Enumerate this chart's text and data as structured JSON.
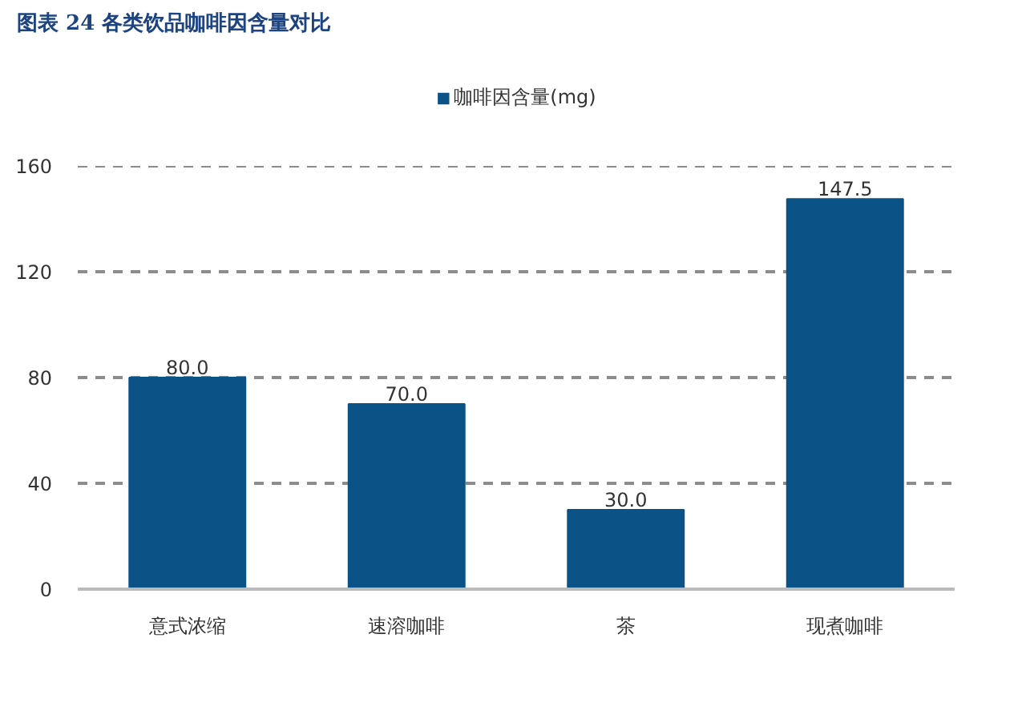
{
  "chart_data": {
    "type": "bar",
    "title": "图表 24 各类饮品咖啡因含量对比",
    "categories": [
      "意式浓缩",
      "速溶咖啡",
      "茶",
      "现煮咖啡"
    ],
    "series": [
      {
        "name": "咖啡因含量(mg)",
        "color": "#0b5286",
        "values": [
          80,
          70,
          30,
          147.5
        ],
        "value_labels": [
          "80.0",
          "70.0",
          "30.0",
          "147.5"
        ]
      }
    ],
    "ylim": [
      0,
      160
    ],
    "yticks": [
      0,
      40,
      80,
      120,
      160
    ],
    "grid": "y",
    "legend": "top"
  }
}
